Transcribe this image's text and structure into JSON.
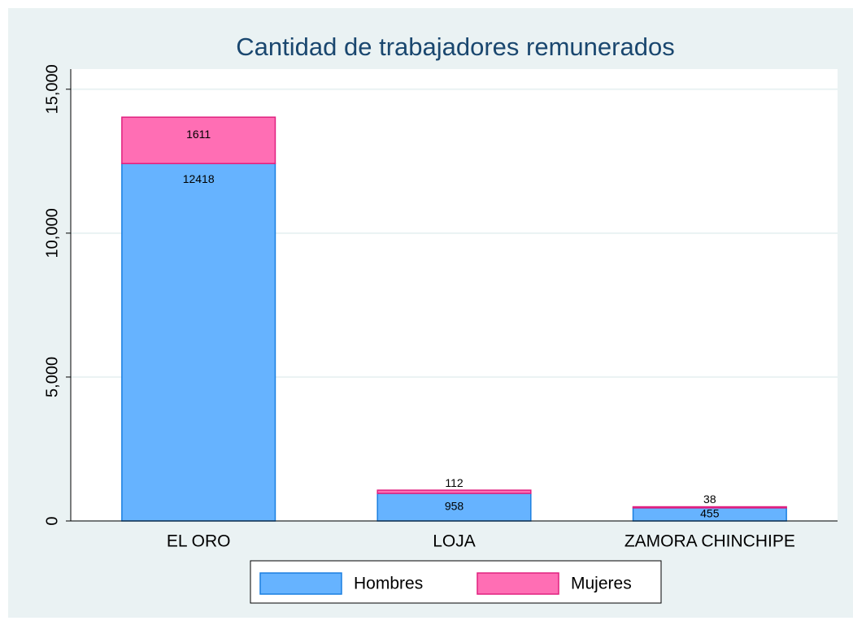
{
  "chart_data": {
    "type": "stacked_bar",
    "title": "Cantidad de trabajadores remunerados",
    "categories": [
      "EL ORO",
      "LOJA",
      "ZAMORA CHINCHIPE"
    ],
    "series": [
      {
        "name": "Hombres",
        "color": "#66b3ff",
        "values": [
          12418,
          958,
          455
        ]
      },
      {
        "name": "Mujeres",
        "color": "#ff6eb4",
        "values": [
          1611,
          112,
          38
        ]
      }
    ],
    "ylim": [
      0,
      15700
    ],
    "yticks": [
      0,
      {
        "value": 5000,
        "label": "5,000"
      },
      {
        "value": 10000,
        "label": "10,000"
      },
      {
        "value": 15000,
        "label": "15,000"
      }
    ],
    "grid": true,
    "legend": "bottom"
  }
}
